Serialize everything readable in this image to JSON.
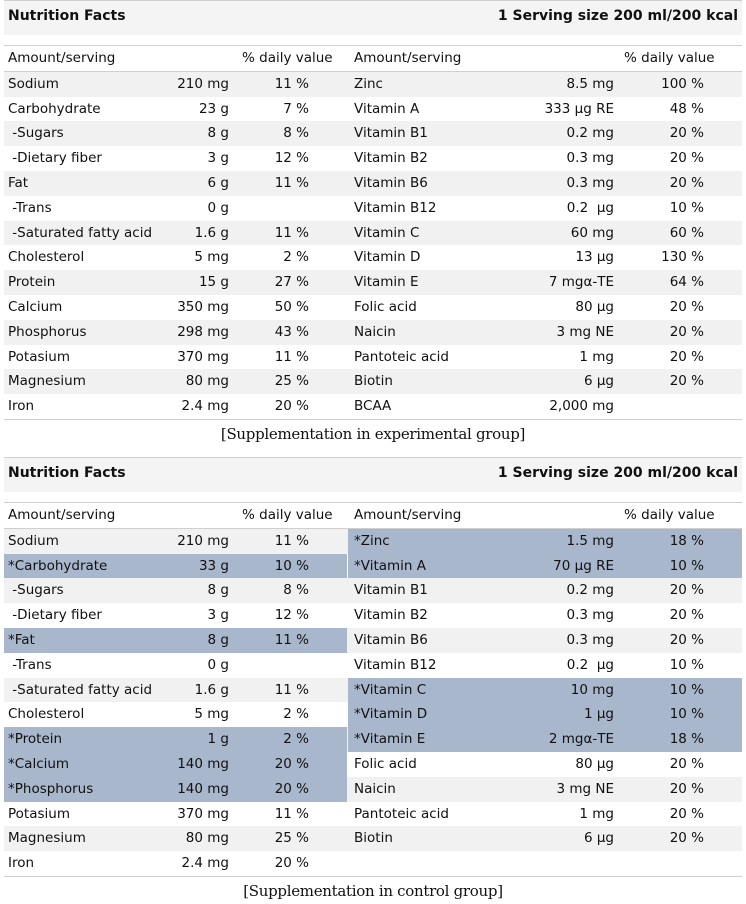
{
  "header_labels": {
    "title": "Nutrition Facts",
    "serving": "1  Serving  size 200 ml/200 kcal",
    "amount": "Amount/serving",
    "daily": "% daily value"
  },
  "experimental": {
    "caption": "[Supplementation in experimental group]",
    "left": [
      {
        "name": "Sodium",
        "amount": "210 mg",
        "dv": "11 %"
      },
      {
        "name": "Carbohydrate",
        "amount": "23 g",
        "dv": "7 %"
      },
      {
        "name": " -Sugars",
        "amount": "8 g",
        "dv": "8 %"
      },
      {
        "name": " -Dietary fiber",
        "amount": "3 g",
        "dv": "12 %"
      },
      {
        "name": "Fat",
        "amount": "6 g",
        "dv": "11 %"
      },
      {
        "name": " -Trans",
        "amount": "0 g",
        "dv": ""
      },
      {
        "name": " -Saturated fatty acid",
        "amount": "1.6 g",
        "dv": "11 %"
      },
      {
        "name": "Cholesterol",
        "amount": "5 mg",
        "dv": "2 %"
      },
      {
        "name": "Protein",
        "amount": "15 g",
        "dv": "27 %"
      },
      {
        "name": "Calcium",
        "amount": "350 mg",
        "dv": "50 %"
      },
      {
        "name": "Phosphorus",
        "amount": "298 mg",
        "dv": "43 %"
      },
      {
        "name": "Potasium",
        "amount": "370 mg",
        "dv": "11 %"
      },
      {
        "name": "Magnesium",
        "amount": "80 mg",
        "dv": "25 %"
      },
      {
        "name": "Iron",
        "amount": "2.4 mg",
        "dv": "20 %"
      }
    ],
    "right": [
      {
        "name": "Zinc",
        "amount": "8.5 mg",
        "dv": "100 %"
      },
      {
        "name": "Vitamin A",
        "amount": "333 μg RE",
        "dv": "48 %"
      },
      {
        "name": "Vitamin B1",
        "amount": "0.2 mg",
        "dv": "20 %"
      },
      {
        "name": "Vitamin B2",
        "amount": "0.3 mg",
        "dv": "20 %"
      },
      {
        "name": "Vitamin B6",
        "amount": "0.3 mg",
        "dv": "20 %"
      },
      {
        "name": "Vitamin B12",
        "amount": "0.2  μg",
        "dv": "10 %"
      },
      {
        "name": "Vitamin C",
        "amount": "60 mg",
        "dv": "60 %"
      },
      {
        "name": "Vitamin D",
        "amount": "13 μg",
        "dv": "130 %"
      },
      {
        "name": "Vitamin E",
        "amount": "7 mgα-TE",
        "dv": "64 %"
      },
      {
        "name": "Folic acid",
        "amount": "80 μg",
        "dv": "20 %"
      },
      {
        "name": "Naicin",
        "amount": "3 mg NE",
        "dv": "20 %"
      },
      {
        "name": "Pantoteic acid",
        "amount": "1 mg",
        "dv": "20 %"
      },
      {
        "name": "Biotin",
        "amount": "6 μg",
        "dv": "20 %"
      },
      {
        "name": "BCAA",
        "amount": "2,000 mg",
        "dv": ""
      }
    ]
  },
  "control": {
    "caption": "[Supplementation in control group]",
    "highlight_color": "#a9b7cc",
    "left": [
      {
        "name": "Sodium",
        "amount": "210 mg",
        "dv": "11 %",
        "hl": false
      },
      {
        "name": "*Carbohydrate",
        "amount": "33 g",
        "dv": "10 %",
        "hl": true
      },
      {
        "name": " -Sugars",
        "amount": "8 g",
        "dv": "8 %",
        "hl": false
      },
      {
        "name": " -Dietary fiber",
        "amount": "3 g",
        "dv": "12 %",
        "hl": false
      },
      {
        "name": "*Fat",
        "amount": "8 g",
        "dv": "11 %",
        "hl": true
      },
      {
        "name": " -Trans",
        "amount": "0 g",
        "dv": "",
        "hl": false
      },
      {
        "name": " -Saturated fatty acid",
        "amount": "1.6 g",
        "dv": "11 %",
        "hl": false
      },
      {
        "name": "Cholesterol",
        "amount": "5 mg",
        "dv": "2 %",
        "hl": false
      },
      {
        "name": "*Protein",
        "amount": "1 g",
        "dv": "2 %",
        "hl": true
      },
      {
        "name": "*Calcium",
        "amount": "140 mg",
        "dv": "20 %",
        "hl": true
      },
      {
        "name": "*Phosphorus",
        "amount": "140 mg",
        "dv": "20 %",
        "hl": true
      },
      {
        "name": "Potasium",
        "amount": "370 mg",
        "dv": "11 %",
        "hl": false
      },
      {
        "name": "Magnesium",
        "amount": "80 mg",
        "dv": "25 %",
        "hl": false
      },
      {
        "name": "Iron",
        "amount": "2.4 mg",
        "dv": "20 %",
        "hl": false
      }
    ],
    "right": [
      {
        "name": "*Zinc",
        "amount": "1.5 mg",
        "dv": "18 %",
        "hl": true
      },
      {
        "name": "*Vitamin A",
        "amount": "70 μg RE",
        "dv": "10 %",
        "hl": true
      },
      {
        "name": "Vitamin B1",
        "amount": "0.2 mg",
        "dv": "20 %",
        "hl": false
      },
      {
        "name": "Vitamin B2",
        "amount": "0.3 mg",
        "dv": "20 %",
        "hl": false
      },
      {
        "name": "Vitamin B6",
        "amount": "0.3 mg",
        "dv": "20 %",
        "hl": false
      },
      {
        "name": "Vitamin B12",
        "amount": "0.2  μg",
        "dv": "10 %",
        "hl": false
      },
      {
        "name": "*Vitamin C",
        "amount": "10 mg",
        "dv": "10 %",
        "hl": true
      },
      {
        "name": "*Vitamin D",
        "amount": "1 μg",
        "dv": "10 %",
        "hl": true
      },
      {
        "name": "*Vitamin E",
        "amount": "2 mgα-TE",
        "dv": "18 %",
        "hl": true
      },
      {
        "name": "Folic acid",
        "amount": "80 μg",
        "dv": "20 %",
        "hl": false
      },
      {
        "name": "Naicin",
        "amount": "3 mg NE",
        "dv": "20 %",
        "hl": false
      },
      {
        "name": "Pantoteic acid",
        "amount": "1 mg",
        "dv": "20 %",
        "hl": false
      },
      {
        "name": "Biotin",
        "amount": "6 μg",
        "dv": "20 %",
        "hl": false
      },
      {
        "name": "",
        "amount": "",
        "dv": "",
        "hl": false
      }
    ]
  }
}
